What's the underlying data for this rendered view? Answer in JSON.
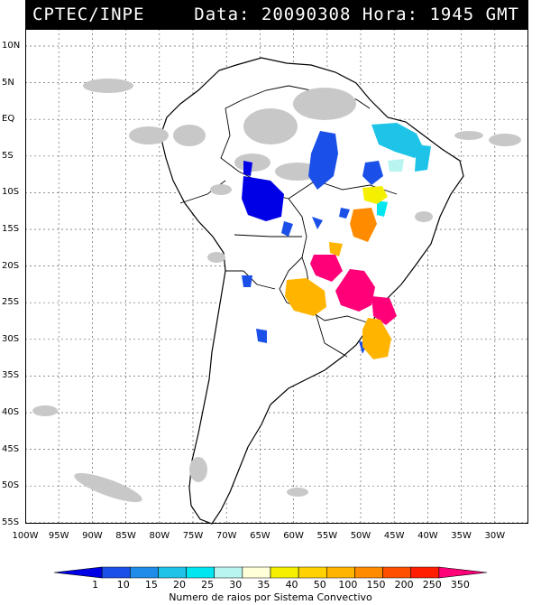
{
  "title": {
    "left": "CPTEC/INPE",
    "right": "Data: 20090308 Hora: 1945 GMT"
  },
  "axes": {
    "lat_labels": [
      "10N",
      "5N",
      "EQ",
      "5S",
      "10S",
      "15S",
      "20S",
      "25S",
      "30S",
      "35S",
      "40S",
      "45S",
      "50S",
      "55S"
    ],
    "lon_labels": [
      "100W",
      "95W",
      "90W",
      "85W",
      "80W",
      "75W",
      "70W",
      "65W",
      "60W",
      "55W",
      "50W",
      "45W",
      "40W",
      "35W",
      "30W"
    ]
  },
  "legend": {
    "ticks": [
      "1",
      "10",
      "15",
      "20",
      "25",
      "30",
      "35",
      "40",
      "50",
      "100",
      "150",
      "200",
      "250",
      "350"
    ],
    "colors": [
      "#0000e6",
      "#1a4fe8",
      "#1e8ce8",
      "#1ec4e8",
      "#00e6f0",
      "#b8f5f0",
      "#ffffd8",
      "#f5f000",
      "#ffd200",
      "#ffb400",
      "#ff8c00",
      "#ff5000",
      "#ff1e00",
      "#ff0078"
    ],
    "caption": "Numero de raios por Sistema Convectivo"
  }
}
